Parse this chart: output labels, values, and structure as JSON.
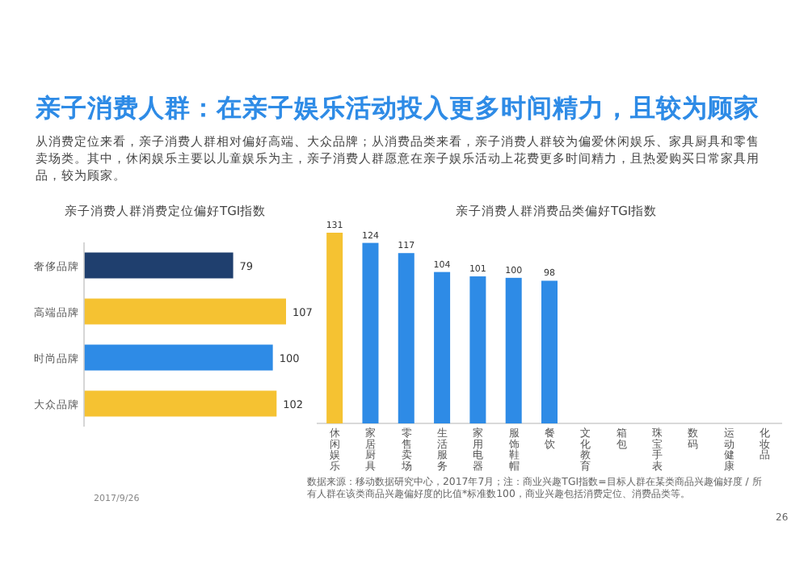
{
  "chart_data": [
    {
      "type": "other",
      "title": "亲子消费人群：在亲子娱乐活动投入更多时间精力，且较为顾家",
      "subtitle": "从消费定位来看，亲子消费人群相对偏好高端、大众品牌；从消费品类来看，亲子消费人群较为偏爱休闲娱乐、家具厨具和零售卖场类。其中，休闲娱乐主要以儿童娱乐为主，亲子消费人群愿意在亲子娱乐活动上花费更多时间精力，且热爱购买日常家具用品，较为顾家。",
      "annotations": [
        "2017/9/26"
      ]
    },
    {
      "type": "bar",
      "orientation": "horizontal",
      "title": "亲子消费人群消费定位偏好TGI指数",
      "categories": [
        "奢侈品牌",
        "高端品牌",
        "时尚品牌",
        "大众品牌"
      ],
      "values": [
        79,
        107,
        100,
        102
      ],
      "colors": [
        "#1f3f6e",
        "#f5c232",
        "#2e8be6",
        "#f5c232"
      ],
      "data_labels": true
    },
    {
      "type": "bar",
      "title": "亲子消费人群消费品类偏好TGI指数",
      "categories": [
        "休闲娱乐",
        "家居厨具",
        "零售卖场",
        "生活服务",
        "家用电器",
        "服饰鞋帽",
        "餐饮",
        "文化教育",
        "箱包",
        "珠宝手表",
        "数码",
        "运动健康",
        "化妆品"
      ],
      "values": [
        131,
        124,
        117,
        104,
        101,
        100,
        98,
        null,
        null,
        null,
        null,
        null,
        null
      ],
      "colors": [
        "#f5c232",
        "#2e8be6",
        "#2e8be6",
        "#2e8be6",
        "#2e8be6",
        "#2e8be6",
        "#2e8be6",
        null,
        null,
        null,
        null,
        null,
        null
      ],
      "data_labels": true,
      "annotations": [
        "数据来源：移动数据研究中心，2017年7月；注：商业兴趣TGI指数=目标人群在某类商品兴趣偏好度 / 所有人群在该类商品兴趣偏好度的比值*标准数100，商业兴趣包括消费定位、消费品类等。",
        "26"
      ]
    }
  ]
}
